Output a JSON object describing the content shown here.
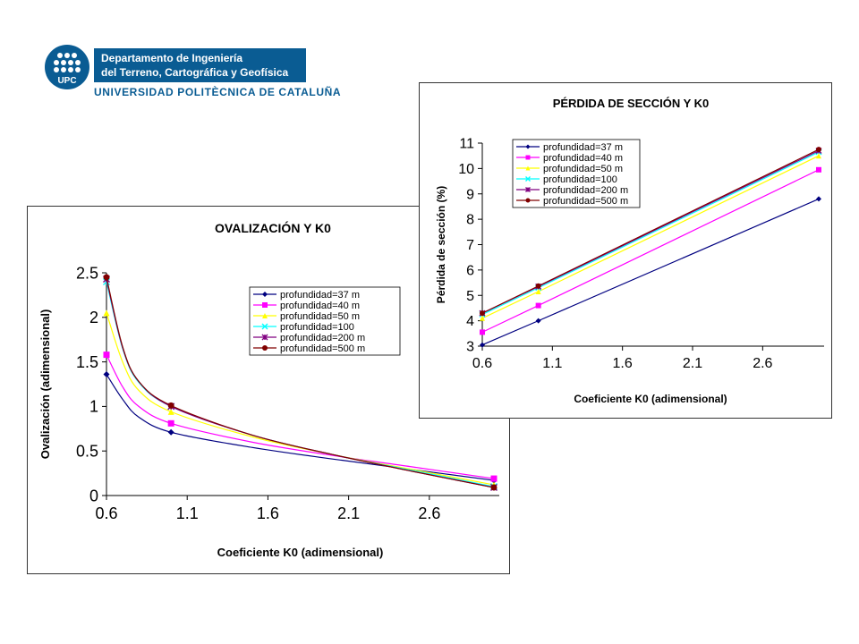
{
  "logo": {
    "acronym": "UPC",
    "department_line1": "Departamento de Ingeniería",
    "department_line2": "del Terreno, Cartográfica y Geofísica",
    "university": "UNIVERSIDAD POLITÈCNICA DE CATALUÑA",
    "color": "#0a5c93"
  },
  "chart_data": [
    {
      "type": "line",
      "title": "OVALIZACIÓN Y K0",
      "xlabel": "Coeficiente K0 (adimensional)",
      "ylabel": "Ovalización (adimensional)",
      "xlim": [
        0.6,
        3.0
      ],
      "ylim": [
        0,
        2.5
      ],
      "xticks": [
        "0.6",
        "1.1",
        "1.6",
        "2.1",
        "2.6"
      ],
      "yticks": [
        "0",
        "0.5",
        "1",
        "1.5",
        "2",
        "2.5"
      ],
      "legend_position": "top-right",
      "x": [
        0.6,
        0.7,
        0.8,
        1.0,
        1.5,
        2.0,
        2.5,
        3.0
      ],
      "series": [
        {
          "name": "profundidad=37 m",
          "color": "#000080",
          "marker": "diamond",
          "values": [
            1.36,
            1.08,
            0.88,
            0.71,
            0.54,
            0.41,
            0.29,
            0.17
          ]
        },
        {
          "name": "profundidad=40 m",
          "color": "#ff00ff",
          "marker": "square",
          "values": [
            1.58,
            1.22,
            1.0,
            0.81,
            0.6,
            0.45,
            0.32,
            0.19
          ]
        },
        {
          "name": "profundidad=50 m",
          "color": "#ffff00",
          "marker": "triangle",
          "values": [
            2.05,
            1.5,
            1.18,
            0.94,
            0.66,
            0.46,
            0.29,
            0.12
          ]
        },
        {
          "name": "profundidad=100",
          "color": "#00ffff",
          "marker": "x",
          "values": [
            2.4,
            1.65,
            1.27,
            1.0,
            0.68,
            0.46,
            0.28,
            0.1
          ]
        },
        {
          "name": "profundidad=200 m",
          "color": "#800080",
          "marker": "star",
          "values": [
            2.43,
            1.66,
            1.28,
            1.0,
            0.68,
            0.46,
            0.27,
            0.09
          ]
        },
        {
          "name": "profundidad=500 m",
          "color": "#800000",
          "marker": "circle",
          "values": [
            2.45,
            1.67,
            1.28,
            1.01,
            0.68,
            0.46,
            0.27,
            0.09
          ]
        }
      ]
    },
    {
      "type": "line",
      "title": "PÉRDIDA DE SECCIÓN Y K0",
      "xlabel": "Coeficiente K0 (adimensional)",
      "ylabel": "Pérdida de sección (%)",
      "xlim": [
        0.6,
        3.0
      ],
      "ylim": [
        3,
        11
      ],
      "xticks": [
        "0.6",
        "1.1",
        "1.6",
        "2.1",
        "2.6"
      ],
      "yticks": [
        "3",
        "4",
        "5",
        "6",
        "7",
        "8",
        "9",
        "10",
        "11"
      ],
      "legend_position": "top-left",
      "x": [
        0.6,
        1.0,
        3.0
      ],
      "series": [
        {
          "name": "profundidad=37 m",
          "color": "#000080",
          "marker": "diamond",
          "values": [
            3.05,
            4.0,
            8.8
          ]
        },
        {
          "name": "profundidad=40 m",
          "color": "#ff00ff",
          "marker": "square",
          "values": [
            3.55,
            4.6,
            9.95
          ]
        },
        {
          "name": "profundidad=50 m",
          "color": "#ffff00",
          "marker": "triangle",
          "values": [
            4.1,
            5.15,
            10.5
          ]
        },
        {
          "name": "profundidad=100",
          "color": "#00ffff",
          "marker": "x",
          "values": [
            4.25,
            5.3,
            10.65
          ]
        },
        {
          "name": "profundidad=200 m",
          "color": "#800080",
          "marker": "star",
          "values": [
            4.3,
            5.35,
            10.7
          ]
        },
        {
          "name": "profundidad=500 m",
          "color": "#800000",
          "marker": "circle",
          "values": [
            4.3,
            5.37,
            10.75
          ]
        }
      ]
    }
  ]
}
